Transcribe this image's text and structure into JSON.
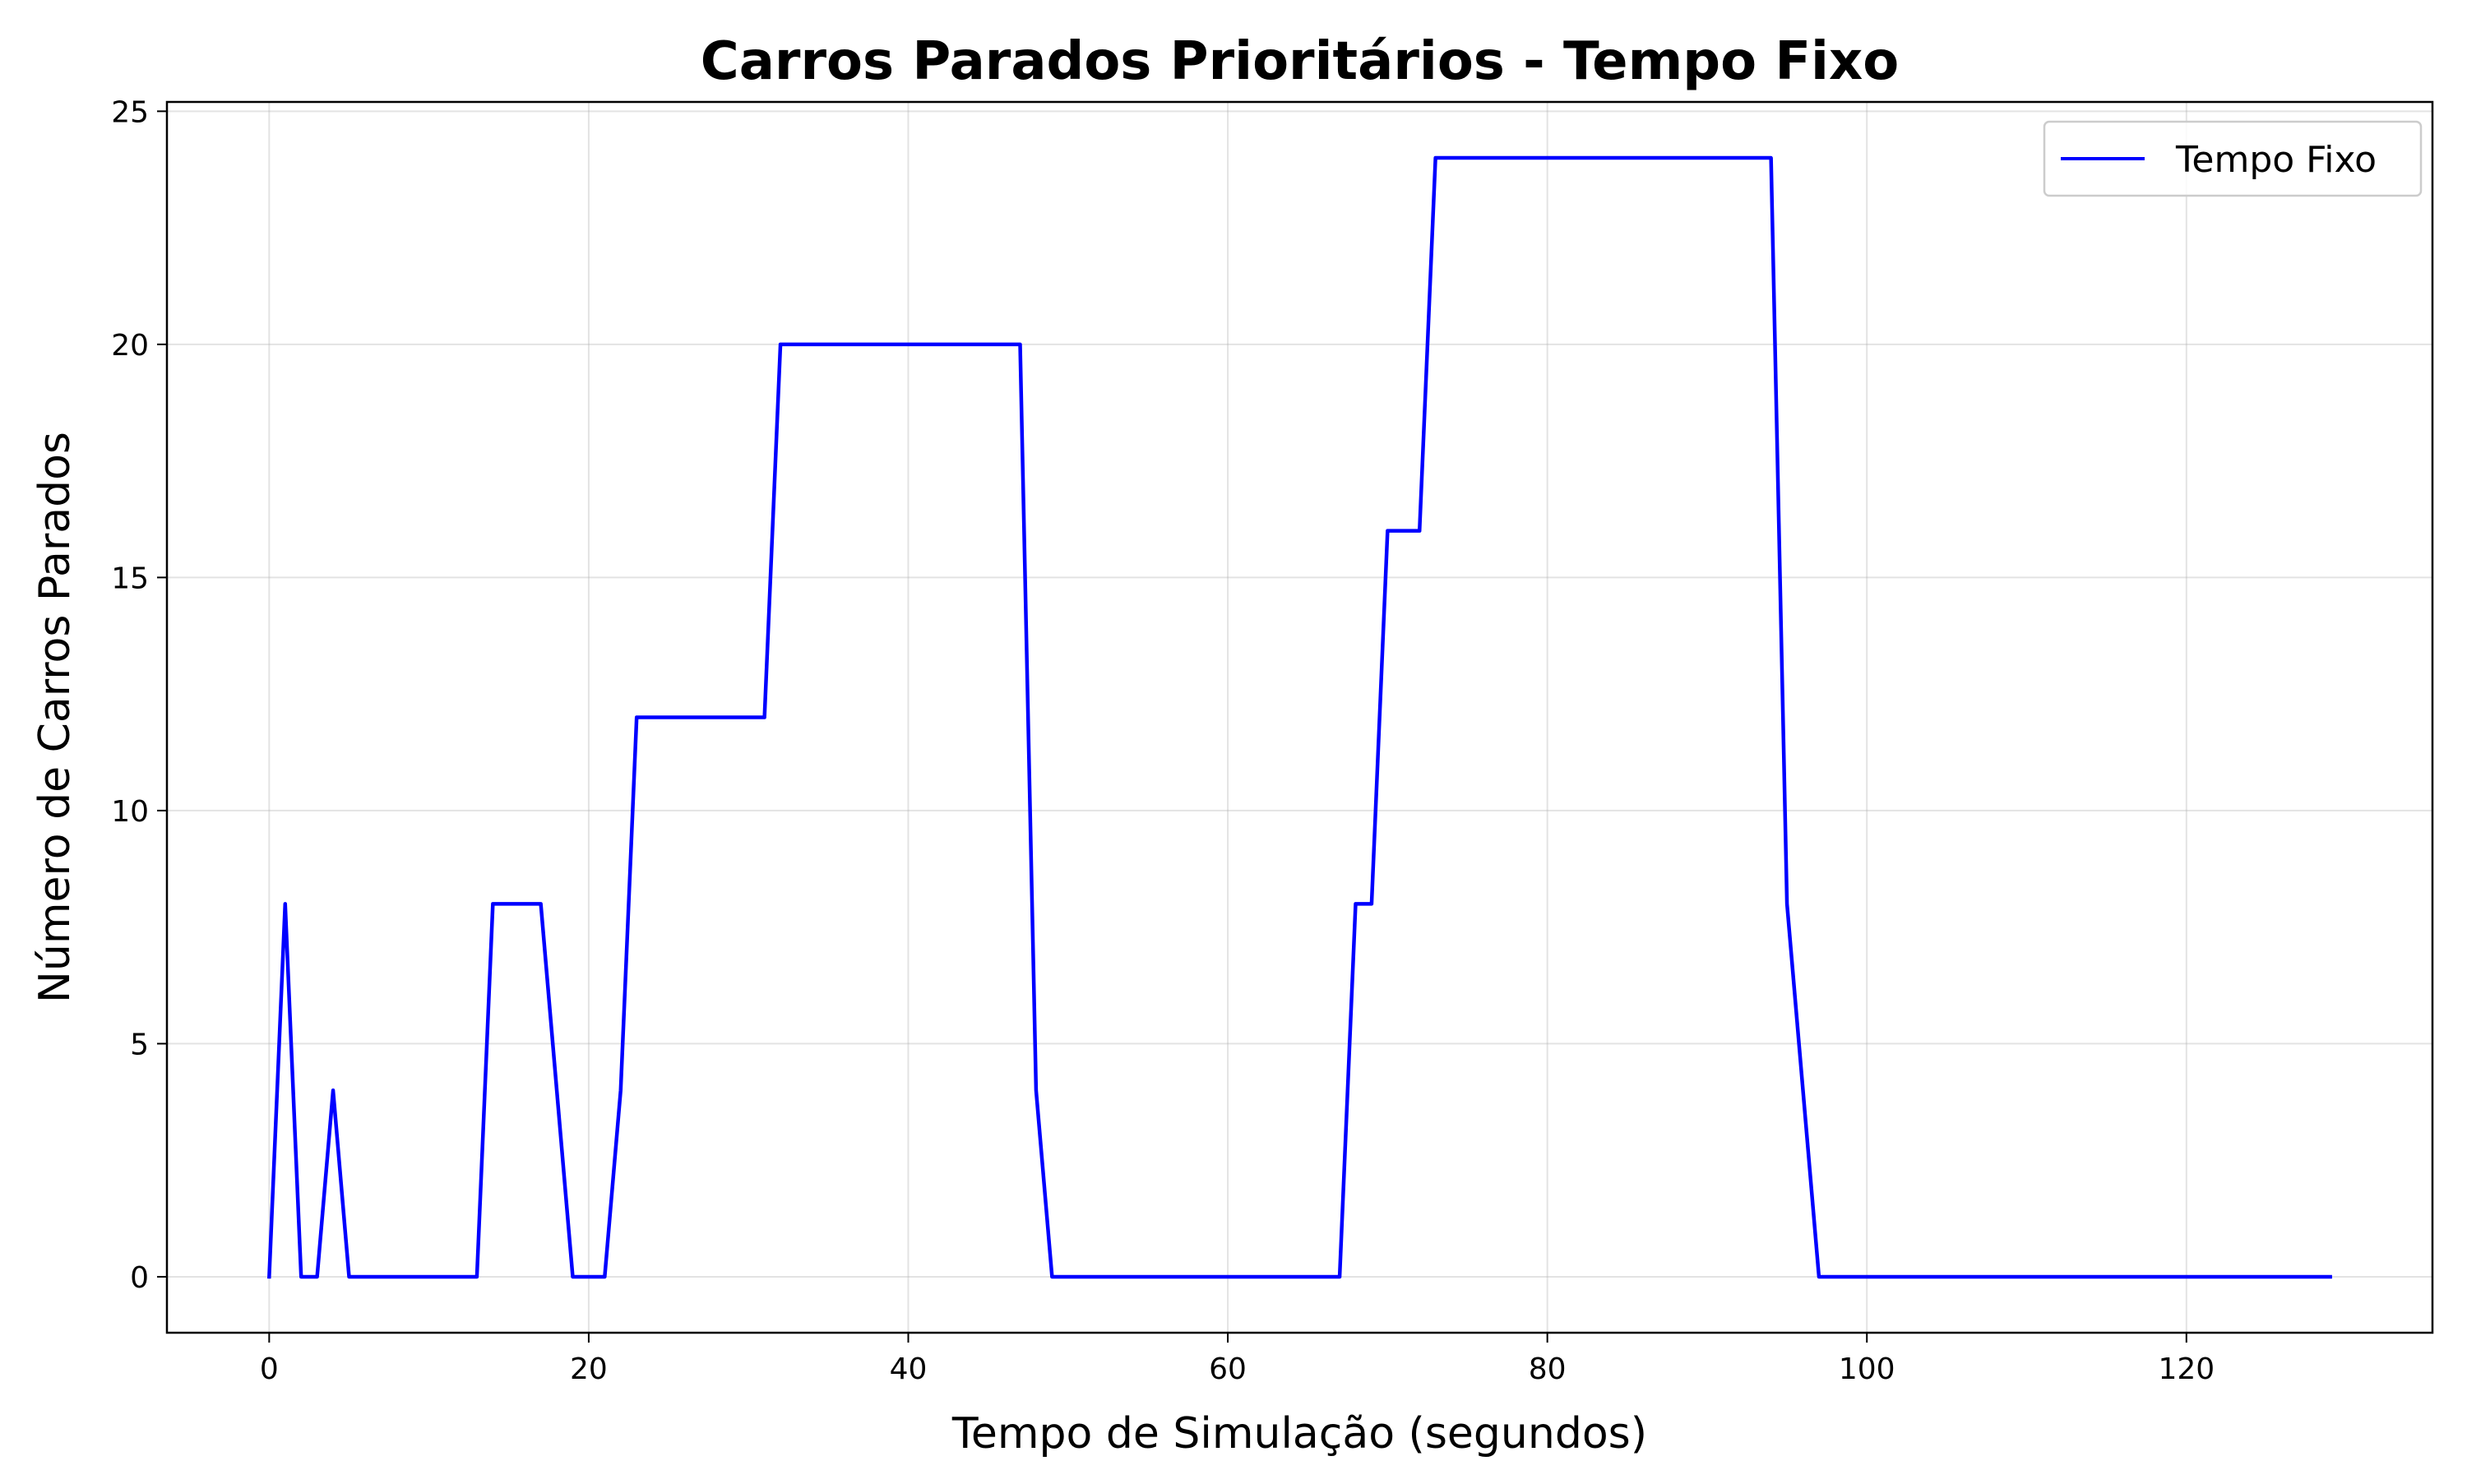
{
  "chart_data": {
    "type": "line",
    "title": "Carros Parados Prioritários - Tempo Fixo",
    "xlabel": "Tempo de Simulação (segundos)",
    "ylabel": "Número de Carros Parados",
    "xlim": [
      -6.4,
      135.4
    ],
    "ylim": [
      -1.2,
      25.2
    ],
    "xticks": [
      0,
      20,
      40,
      60,
      80,
      100,
      120
    ],
    "yticks": [
      0,
      5,
      10,
      15,
      20,
      25
    ],
    "grid": true,
    "legend": {
      "position": "top-right"
    },
    "series": [
      {
        "name": "Tempo Fixo",
        "color": "#0000ff",
        "x": [
          0,
          1,
          2,
          3,
          4,
          5,
          13,
          14,
          17,
          19,
          21,
          22,
          23,
          31,
          32,
          47,
          48,
          49,
          67,
          68,
          69,
          70,
          72,
          73,
          94,
          95,
          97,
          129
        ],
        "y": [
          0,
          8,
          0,
          0,
          4,
          0,
          0,
          8,
          8,
          0,
          0,
          4,
          12,
          12,
          20,
          20,
          4,
          0,
          0,
          8,
          8,
          16,
          16,
          24,
          24,
          8,
          0,
          0
        ]
      }
    ]
  }
}
